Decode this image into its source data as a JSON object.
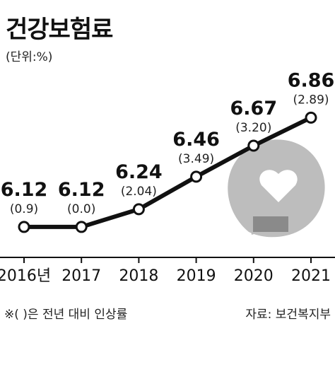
{
  "header": {
    "title": "건강보험료",
    "unit": "(단위:%)"
  },
  "footer": {
    "note": "※( )은 전년 대비 인상률",
    "source": "자료: 보건복지부"
  },
  "chart_data": {
    "type": "line",
    "title": "건강보험료",
    "x": [
      "2016년",
      "2017",
      "2018",
      "2019",
      "2020",
      "2021"
    ],
    "series": [
      {
        "values": [
          6.12,
          6.12,
          6.24,
          6.46,
          6.67,
          6.86
        ],
        "value_labels": [
          "6.12",
          "6.12",
          "6.24",
          "6.46",
          "6.67",
          "6.86"
        ],
        "change_labels": [
          "(0.9)",
          "(0.0)",
          "(2.04)",
          "(3.49)",
          "(3.20)",
          "(2.89)"
        ]
      }
    ],
    "ylim": [
      6.0,
      6.9
    ],
    "grid": false,
    "line_color": "#111111",
    "marker_fill": "#ffffff",
    "axis_color": "#111111"
  }
}
